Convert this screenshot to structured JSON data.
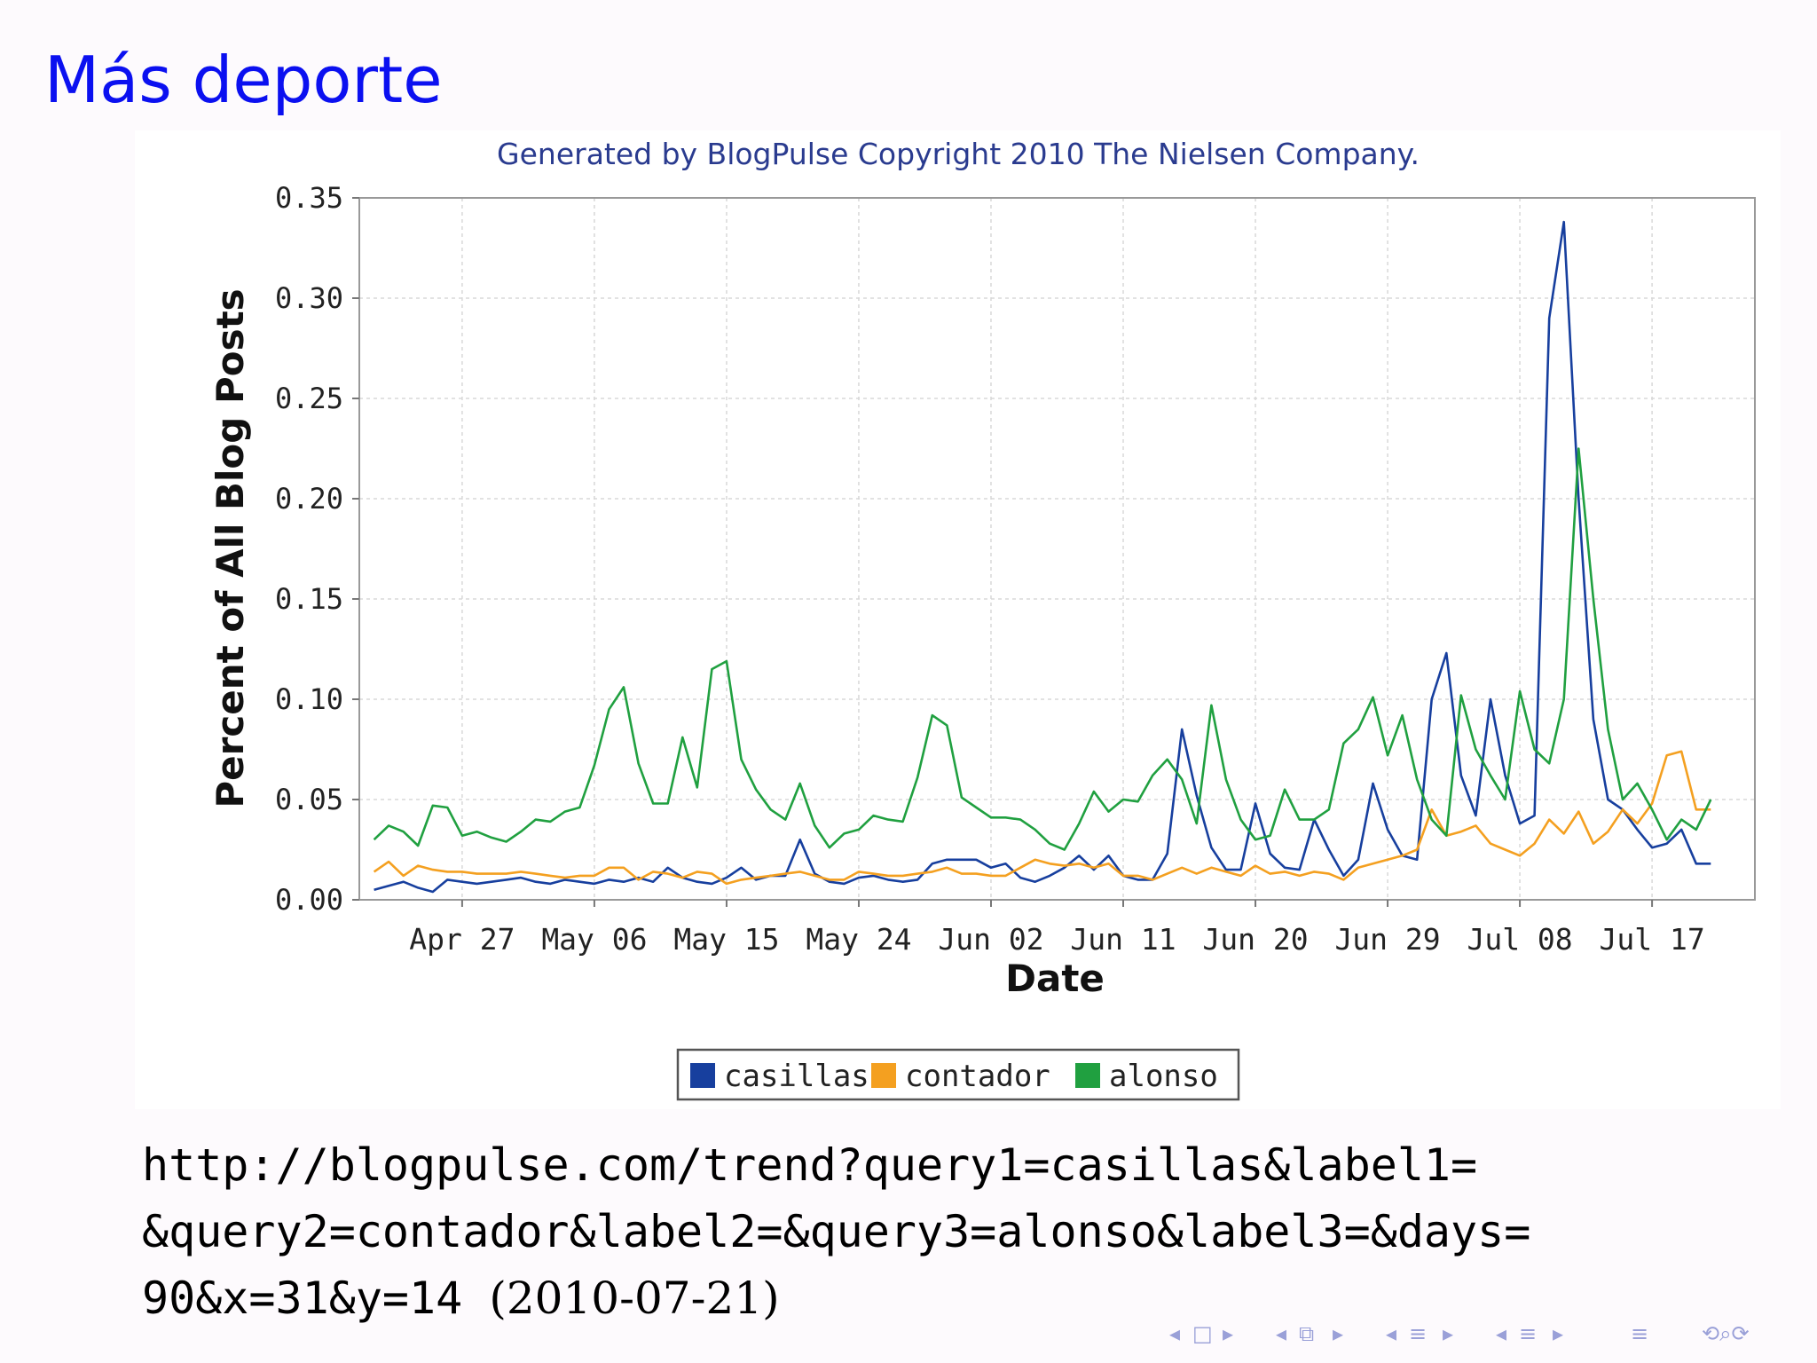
{
  "slide": {
    "title": "Más deporte",
    "url_line1": "http://blogpulse.com/trend?query1=casillas&label1=",
    "url_line2": "&query2=contador&label2=&query3=alonso&label3=&days=",
    "url_line3": "90&x=31&y=14",
    "date_note": "(2010-07-21)"
  },
  "colors": {
    "title": "#0b10f0",
    "casillas": "#173f9e",
    "contador": "#f4a020",
    "alonso": "#20a040",
    "credit": "#2a3b8f"
  },
  "nav": {
    "icons": [
      "nav-left-icon",
      "frame-icon",
      "nav-right-icon",
      "nav-left-icon",
      "section-icon",
      "nav-right-icon",
      "nav-left-icon",
      "subsection-icon",
      "nav-right-icon",
      "nav-left-icon",
      "list-icon",
      "nav-right-icon",
      "list-icon",
      "search-icon"
    ]
  },
  "chart_data": {
    "type": "line",
    "title": "Generated by BlogPulse Copyright 2010 The Nielsen Company.",
    "xlabel": "Date",
    "ylabel": "Percent of All Blog Posts",
    "ylim": [
      0,
      0.35
    ],
    "yticks": [
      "0.00",
      "0.05",
      "0.10",
      "0.15",
      "0.20",
      "0.25",
      "0.30",
      "0.35"
    ],
    "xlim": [
      "2010-04-20",
      "2010-07-24"
    ],
    "xticks": [
      {
        "label": "Apr 27",
        "date": "2010-04-27"
      },
      {
        "label": "May 06",
        "date": "2010-05-06"
      },
      {
        "label": "May 15",
        "date": "2010-05-15"
      },
      {
        "label": "May 24",
        "date": "2010-05-24"
      },
      {
        "label": "Jun 02",
        "date": "2010-06-02"
      },
      {
        "label": "Jun 11",
        "date": "2010-06-11"
      },
      {
        "label": "Jun 20",
        "date": "2010-06-20"
      },
      {
        "label": "Jun 29",
        "date": "2010-06-29"
      },
      {
        "label": "Jul 08",
        "date": "2010-07-08"
      },
      {
        "label": "Jul 17",
        "date": "2010-07-17"
      }
    ],
    "grid": true,
    "legend_position": "bottom",
    "dates": [
      "2010-04-21",
      "2010-04-22",
      "2010-04-23",
      "2010-04-24",
      "2010-04-25",
      "2010-04-26",
      "2010-04-27",
      "2010-04-28",
      "2010-04-29",
      "2010-04-30",
      "2010-05-01",
      "2010-05-02",
      "2010-05-03",
      "2010-05-04",
      "2010-05-05",
      "2010-05-06",
      "2010-05-07",
      "2010-05-08",
      "2010-05-09",
      "2010-05-10",
      "2010-05-11",
      "2010-05-12",
      "2010-05-13",
      "2010-05-14",
      "2010-05-15",
      "2010-05-16",
      "2010-05-17",
      "2010-05-18",
      "2010-05-19",
      "2010-05-20",
      "2010-05-21",
      "2010-05-22",
      "2010-05-23",
      "2010-05-24",
      "2010-05-25",
      "2010-05-26",
      "2010-05-27",
      "2010-05-28",
      "2010-05-29",
      "2010-05-30",
      "2010-05-31",
      "2010-06-01",
      "2010-06-02",
      "2010-06-03",
      "2010-06-04",
      "2010-06-05",
      "2010-06-06",
      "2010-06-07",
      "2010-06-08",
      "2010-06-09",
      "2010-06-10",
      "2010-06-11",
      "2010-06-12",
      "2010-06-13",
      "2010-06-14",
      "2010-06-15",
      "2010-06-16",
      "2010-06-17",
      "2010-06-18",
      "2010-06-19",
      "2010-06-20",
      "2010-06-21",
      "2010-06-22",
      "2010-06-23",
      "2010-06-24",
      "2010-06-25",
      "2010-06-26",
      "2010-06-27",
      "2010-06-28",
      "2010-06-29",
      "2010-06-30",
      "2010-07-01",
      "2010-07-02",
      "2010-07-03",
      "2010-07-04",
      "2010-07-05",
      "2010-07-06",
      "2010-07-07",
      "2010-07-08",
      "2010-07-09",
      "2010-07-10",
      "2010-07-11",
      "2010-07-12",
      "2010-07-13",
      "2010-07-14",
      "2010-07-15",
      "2010-07-16",
      "2010-07-17",
      "2010-07-18",
      "2010-07-19",
      "2010-07-20",
      "2010-07-21"
    ],
    "series": [
      {
        "name": "casillas",
        "values": [
          0.005,
          0.007,
          0.009,
          0.006,
          0.004,
          0.01,
          0.009,
          0.008,
          0.009,
          0.01,
          0.011,
          0.009,
          0.008,
          0.01,
          0.009,
          0.008,
          0.01,
          0.009,
          0.011,
          0.009,
          0.016,
          0.011,
          0.009,
          0.008,
          0.011,
          0.016,
          0.01,
          0.012,
          0.012,
          0.03,
          0.013,
          0.009,
          0.008,
          0.011,
          0.012,
          0.01,
          0.009,
          0.01,
          0.018,
          0.02,
          0.02,
          0.02,
          0.016,
          0.018,
          0.011,
          0.009,
          0.012,
          0.016,
          0.022,
          0.015,
          0.022,
          0.012,
          0.01,
          0.01,
          0.023,
          0.085,
          0.052,
          0.026,
          0.015,
          0.015,
          0.048,
          0.023,
          0.016,
          0.015,
          0.04,
          0.025,
          0.012,
          0.02,
          0.058,
          0.035,
          0.022,
          0.02,
          0.1,
          0.123,
          0.062,
          0.042,
          0.1,
          0.062,
          0.038,
          0.042,
          0.29,
          0.338,
          0.2,
          0.09,
          0.05,
          0.045,
          0.035,
          0.026,
          0.028,
          0.035,
          0.018,
          0.018
        ]
      },
      {
        "name": "contador",
        "values": [
          0.014,
          0.019,
          0.012,
          0.017,
          0.015,
          0.014,
          0.014,
          0.013,
          0.013,
          0.013,
          0.014,
          0.013,
          0.012,
          0.011,
          0.012,
          0.012,
          0.016,
          0.016,
          0.01,
          0.014,
          0.013,
          0.011,
          0.014,
          0.013,
          0.008,
          0.01,
          0.011,
          0.012,
          0.013,
          0.014,
          0.012,
          0.01,
          0.01,
          0.014,
          0.013,
          0.012,
          0.012,
          0.013,
          0.014,
          0.016,
          0.013,
          0.013,
          0.012,
          0.012,
          0.016,
          0.02,
          0.018,
          0.017,
          0.018,
          0.016,
          0.018,
          0.012,
          0.012,
          0.01,
          0.013,
          0.016,
          0.013,
          0.016,
          0.014,
          0.012,
          0.017,
          0.013,
          0.014,
          0.012,
          0.014,
          0.013,
          0.01,
          0.016,
          0.018,
          0.02,
          0.022,
          0.025,
          0.045,
          0.032,
          0.034,
          0.037,
          0.028,
          0.025,
          0.022,
          0.028,
          0.04,
          0.033,
          0.044,
          0.028,
          0.034,
          0.045,
          0.038,
          0.048,
          0.072,
          0.074,
          0.045,
          0.045
        ]
      },
      {
        "name": "alonso",
        "values": [
          0.03,
          0.037,
          0.034,
          0.027,
          0.047,
          0.046,
          0.032,
          0.034,
          0.031,
          0.029,
          0.034,
          0.04,
          0.039,
          0.044,
          0.046,
          0.067,
          0.095,
          0.106,
          0.068,
          0.048,
          0.048,
          0.081,
          0.056,
          0.115,
          0.119,
          0.07,
          0.055,
          0.045,
          0.04,
          0.058,
          0.037,
          0.026,
          0.033,
          0.035,
          0.042,
          0.04,
          0.039,
          0.061,
          0.092,
          0.087,
          0.051,
          0.046,
          0.041,
          0.041,
          0.04,
          0.035,
          0.028,
          0.025,
          0.038,
          0.054,
          0.044,
          0.05,
          0.049,
          0.062,
          0.07,
          0.06,
          0.038,
          0.097,
          0.06,
          0.04,
          0.03,
          0.032,
          0.055,
          0.04,
          0.04,
          0.045,
          0.078,
          0.085,
          0.101,
          0.072,
          0.092,
          0.06,
          0.04,
          0.032,
          0.102,
          0.075,
          0.062,
          0.05,
          0.104,
          0.075,
          0.068,
          0.1,
          0.225,
          0.15,
          0.085,
          0.05,
          0.058,
          0.045,
          0.03,
          0.04,
          0.035,
          0.05
        ]
      }
    ]
  }
}
